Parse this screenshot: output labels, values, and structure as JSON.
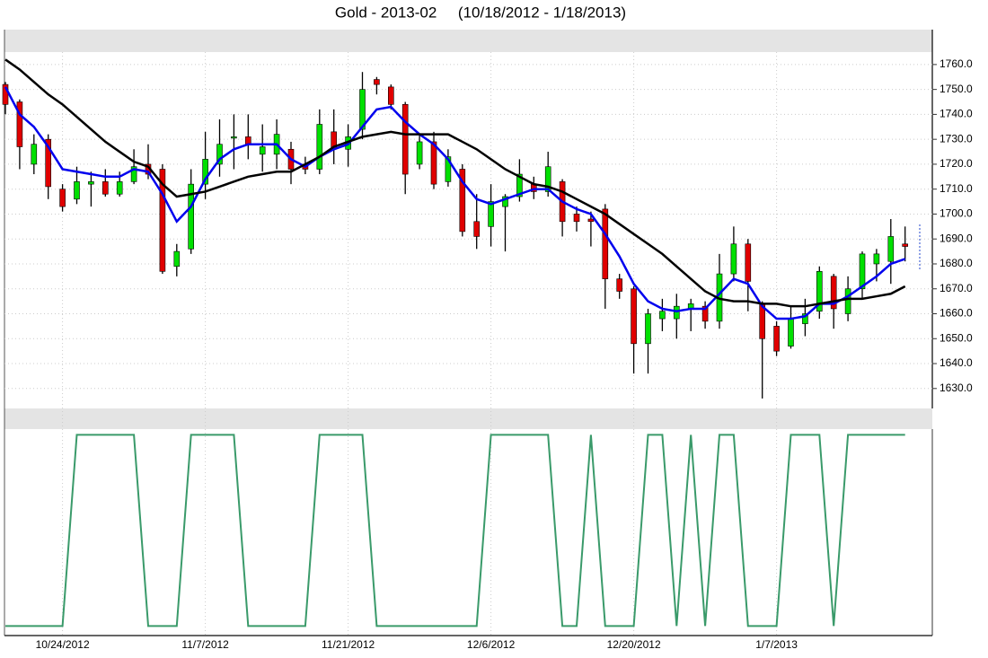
{
  "chart_data": [
    {
      "type": "candlestick",
      "title": "Gold - 2013-02     (10/18/2012 - 1/18/2013)",
      "categories": [
        null,
        null,
        null,
        null,
        "10/24/2012",
        null,
        null,
        null,
        null,
        null,
        null,
        null,
        null,
        null,
        "11/7/2012",
        null,
        null,
        null,
        null,
        null,
        null,
        null,
        null,
        null,
        "11/21/2012",
        null,
        null,
        null,
        null,
        null,
        null,
        null,
        null,
        null,
        "12/6/2012",
        null,
        null,
        null,
        null,
        null,
        null,
        null,
        null,
        null,
        "12/20/2012",
        null,
        null,
        null,
        null,
        null,
        null,
        null,
        null,
        null,
        "1/7/2013",
        null,
        null,
        null,
        null,
        null,
        null,
        null,
        null,
        null
      ],
      "open": [
        1752,
        1745,
        1720,
        1730,
        1710,
        1706,
        1712,
        1713,
        1708,
        1713,
        1720,
        1718,
        1679,
        1686,
        1712,
        1720,
        1731,
        1731,
        1724,
        1724,
        1726,
        1720,
        1718,
        1733,
        1726,
        1734,
        1754,
        1751,
        1744,
        1720,
        1729,
        1713,
        1718,
        1697,
        1695,
        1703,
        1707,
        1712,
        1709,
        1713,
        1700,
        1698,
        1702,
        1674,
        1670,
        1648,
        1658,
        1658,
        1662,
        1663,
        1657,
        1676,
        1688,
        1664,
        1655,
        1647,
        1656,
        1661,
        1675,
        1660,
        1670,
        1680,
        1681,
        1688
      ],
      "high": [
        1753,
        1746,
        1732,
        1732,
        1712,
        1719,
        1717,
        1718,
        1717,
        1726,
        1728,
        1720,
        1688,
        1718,
        1733,
        1738,
        1740,
        1740,
        1736,
        1738,
        1729,
        1723,
        1742,
        1742,
        1736,
        1757,
        1755,
        1752,
        1745,
        1732,
        1733,
        1726,
        1720,
        1708,
        1712,
        1708,
        1722,
        1715,
        1725,
        1714,
        1703,
        1701,
        1704,
        1676,
        1671,
        1662,
        1666,
        1668,
        1666,
        1665,
        1684,
        1695,
        1690,
        1665,
        1657,
        1663,
        1666,
        1679,
        1676,
        1675,
        1685,
        1686,
        1698,
        1695
      ],
      "low": [
        1740,
        1718,
        1716,
        1706,
        1701,
        1704,
        1703,
        1707,
        1707,
        1712,
        1714,
        1676,
        1675,
        1684,
        1706,
        1715,
        1718,
        1722,
        1717,
        1718,
        1712,
        1716,
        1716,
        1720,
        1719,
        1730,
        1748,
        1742,
        1708,
        1718,
        1710,
        1711,
        1691,
        1686,
        1687,
        1685,
        1705,
        1706,
        1707,
        1691,
        1693,
        1687,
        1662,
        1666,
        1636,
        1636,
        1653,
        1650,
        1653,
        1654,
        1654,
        1673,
        1661,
        1626,
        1643,
        1646,
        1651,
        1658,
        1654,
        1657,
        1666,
        1673,
        1672,
        1681
      ],
      "close": [
        1744,
        1727,
        1728,
        1711,
        1703,
        1713,
        1713,
        1708,
        1713,
        1719,
        1716,
        1677,
        1685,
        1712,
        1722,
        1728,
        1731,
        1728,
        1727,
        1732,
        1718,
        1718,
        1736,
        1726,
        1731,
        1750,
        1752,
        1744,
        1716,
        1729,
        1712,
        1723,
        1693,
        1691,
        1705,
        1707,
        1716,
        1709,
        1719,
        1697,
        1697,
        1697,
        1674,
        1669,
        1648,
        1660,
        1661,
        1663,
        1664,
        1657,
        1676,
        1688,
        1673,
        1650,
        1645,
        1658,
        1660,
        1677,
        1662,
        1670,
        1684,
        1684,
        1691,
        1687
      ],
      "up_color": "#00e000",
      "down_color": "#e00000",
      "series": [
        {
          "color": "#0000ee",
          "values": [
            1751,
            1740,
            1735,
            1727,
            1718,
            1717,
            1716,
            1715,
            1715,
            1718,
            1717,
            1708,
            1697,
            1703,
            1714,
            1722,
            1726,
            1728,
            1728,
            1728,
            1722,
            1719,
            1723,
            1726,
            1728,
            1735,
            1742,
            1743,
            1737,
            1732,
            1728,
            1722,
            1713,
            1706,
            1704,
            1706,
            1708,
            1710,
            1710,
            1705,
            1702,
            1700,
            1692,
            1683,
            1672,
            1665,
            1662,
            1661,
            1662,
            1662,
            1668,
            1674,
            1672,
            1663,
            1658,
            1658,
            1659,
            1664,
            1664,
            1667,
            1671,
            1675,
            1680,
            1682
          ]
        },
        {
          "color": "#000000",
          "values": [
            1762,
            1758,
            1753,
            1748,
            1744,
            1739,
            1734,
            1729,
            1725,
            1721,
            1719,
            1712,
            1707,
            1708,
            1709,
            1711,
            1713,
            1715,
            1716,
            1717,
            1717,
            1720,
            1723,
            1727,
            1729,
            1731,
            1732,
            1733,
            1732,
            1732,
            1732,
            1732,
            1729,
            1726,
            1722,
            1718,
            1715,
            1712,
            1711,
            1709,
            1706,
            1703,
            1700,
            1696,
            1692,
            1688,
            1684,
            1679,
            1674,
            1669,
            1666,
            1665,
            1665,
            1664,
            1664,
            1663,
            1663,
            1664,
            1665,
            1666,
            1666,
            1667,
            1668,
            1671
          ]
        }
      ],
      "ylim": [
        1622,
        1765
      ],
      "yticks": [
        {
          "value": 1630,
          "label": "1630.0"
        },
        {
          "value": 1640,
          "label": "1640.0"
        },
        {
          "value": 1650,
          "label": "1650.0"
        },
        {
          "value": 1660,
          "label": "1660.0"
        },
        {
          "value": 1670,
          "label": "1670.0"
        },
        {
          "value": 1680,
          "label": "1680.0"
        },
        {
          "value": 1690,
          "label": "1690.0"
        },
        {
          "value": 1700,
          "label": "1700.0"
        },
        {
          "value": 1710,
          "label": "1710.0"
        },
        {
          "value": 1720,
          "label": "1720.0"
        },
        {
          "value": 1730,
          "label": "1730.0"
        },
        {
          "value": 1740,
          "label": "1740.0"
        },
        {
          "value": 1750,
          "label": "1750.0"
        },
        {
          "value": 1760,
          "label": "1760.0"
        }
      ],
      "grid": true
    },
    {
      "type": "line",
      "color": "#3a9a6a",
      "values": [
        0,
        0,
        0,
        0,
        0,
        1,
        1,
        1,
        1,
        1,
        0,
        0,
        0,
        1,
        1,
        1,
        1,
        0,
        0,
        0,
        0,
        0,
        1,
        1,
        1,
        1,
        0,
        0,
        0,
        0,
        0,
        0,
        0,
        0,
        1,
        1,
        1,
        1,
        1,
        0,
        0,
        1,
        0,
        0,
        0,
        1,
        1,
        0,
        1,
        0,
        1,
        1,
        0,
        0,
        0,
        1,
        1,
        1,
        0,
        1,
        1,
        1,
        1,
        1
      ],
      "ylim": [
        -0.05,
        1.03
      ]
    }
  ]
}
